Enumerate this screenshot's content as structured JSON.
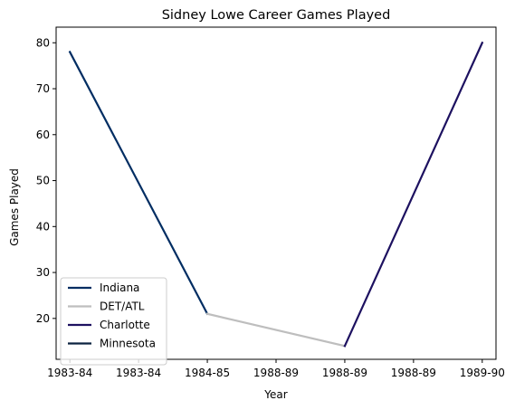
{
  "chart_data": {
    "type": "line",
    "title": "Sidney Lowe Career Games Played",
    "xlabel": "Year",
    "ylabel": "Games Played",
    "x_ticks": [
      "1983-84",
      "1983-84",
      "1984-85",
      "1988-89",
      "1988-89",
      "1988-89",
      "1989-90"
    ],
    "xlim": [
      -0.2,
      6.2
    ],
    "ylim": [
      11.1,
      83.4
    ],
    "y_ticks": [
      20,
      30,
      40,
      50,
      60,
      70,
      80
    ],
    "grid": false,
    "legend_position": "lower-left",
    "series": [
      {
        "name": "Indiana",
        "color": "#002D62",
        "x": [
          0,
          2
        ],
        "y": [
          78,
          21
        ]
      },
      {
        "name": "DET/ATL",
        "color": "#BEBEBE",
        "x": [
          2,
          4
        ],
        "y": [
          21,
          14
        ]
      },
      {
        "name": "Charlotte",
        "color": "#1D1160",
        "x": [
          4,
          6
        ],
        "y": [
          14,
          80
        ]
      },
      {
        "name": "Minnesota",
        "color": "#0C2340",
        "x": [],
        "y": []
      }
    ]
  }
}
